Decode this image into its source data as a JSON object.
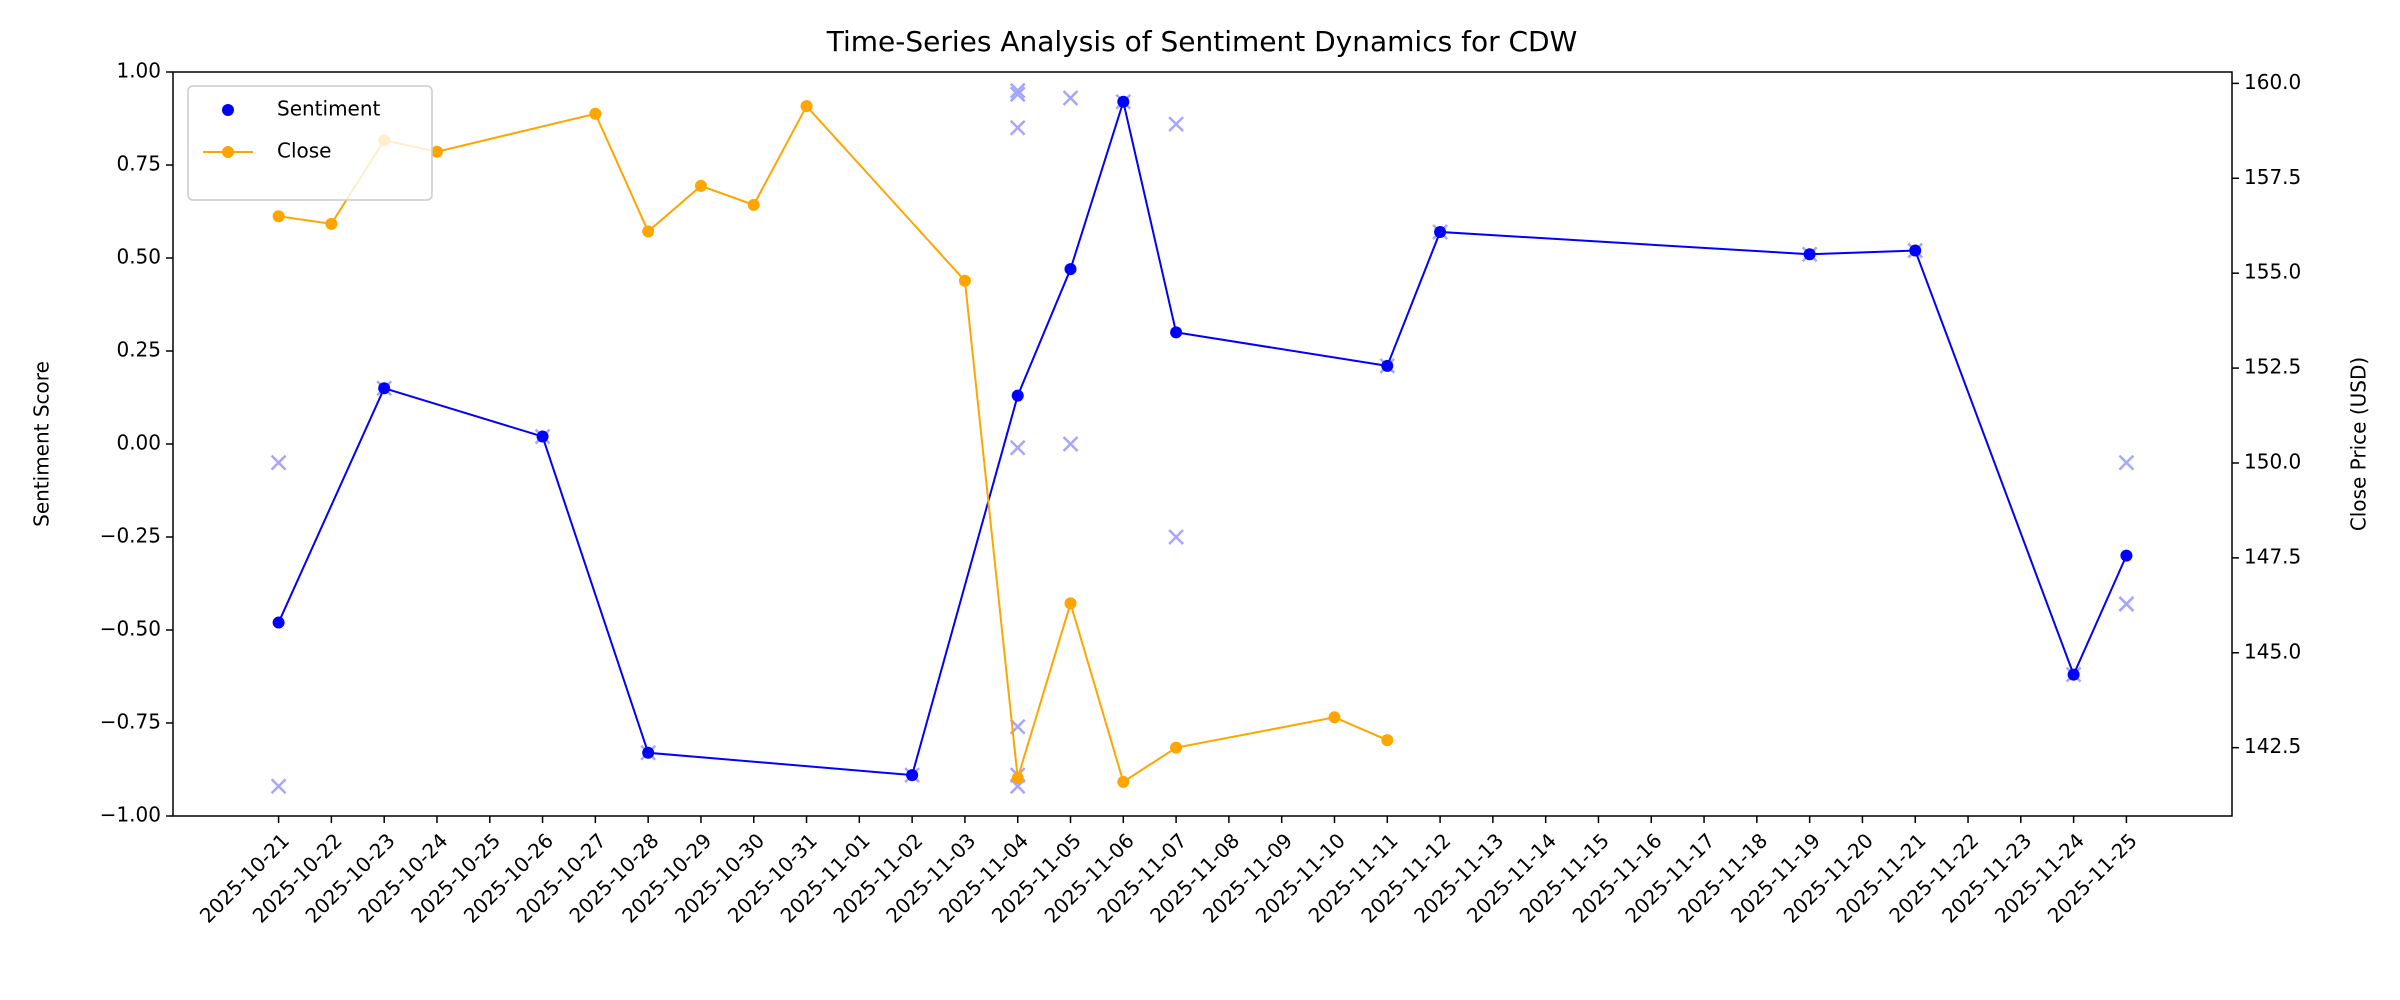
{
  "chart_data": {
    "type": "line",
    "title": "Time-Series Analysis of Sentiment Dynamics for CDW",
    "ylabel": "Sentiment Score",
    "y2label": "Close Price (USD)",
    "xlim": [
      "2025-10-19",
      "2025-11-27"
    ],
    "xticks": [
      "2025-10-21",
      "2025-10-22",
      "2025-10-23",
      "2025-10-24",
      "2025-10-25",
      "2025-10-26",
      "2025-10-27",
      "2025-10-28",
      "2025-10-29",
      "2025-10-30",
      "2025-10-31",
      "2025-11-01",
      "2025-11-02",
      "2025-11-03",
      "2025-11-04",
      "2025-11-05",
      "2025-11-06",
      "2025-11-07",
      "2025-11-08",
      "2025-11-09",
      "2025-11-10",
      "2025-11-11",
      "2025-11-12",
      "2025-11-13",
      "2025-11-14",
      "2025-11-15",
      "2025-11-16",
      "2025-11-17",
      "2025-11-18",
      "2025-11-19",
      "2025-11-20",
      "2025-11-21",
      "2025-11-22",
      "2025-11-23",
      "2025-11-24",
      "2025-11-25"
    ],
    "ylim": [
      -1,
      1
    ],
    "yticks": [
      {
        "value": -1,
        "label": "−1.00"
      },
      {
        "value": -0.75,
        "label": "−0.75"
      },
      {
        "value": -0.5,
        "label": "−0.50"
      },
      {
        "value": -0.25,
        "label": "−0.25"
      },
      {
        "value": 0,
        "label": "0.00"
      },
      {
        "value": 0.25,
        "label": "0.25"
      },
      {
        "value": 0.5,
        "label": "0.50"
      },
      {
        "value": 0.75,
        "label": "0.75"
      },
      {
        "value": 1,
        "label": "1.00"
      }
    ],
    "y2lim": [
      140.7,
      160.3
    ],
    "y2ticks": [
      142.5,
      {
        "value": 145,
        "label": "145.0"
      },
      147.5,
      {
        "value": 150,
        "label": "150.0"
      },
      152.5,
      {
        "value": 155,
        "label": "155.0"
      },
      157.5,
      {
        "value": 160,
        "label": "160.0"
      }
    ],
    "legend": "upper left",
    "series": [
      {
        "name": "Sentiment",
        "color": "#0000ff",
        "marker": "o",
        "line": true,
        "legend_line": false,
        "x": [
          "2025-10-21",
          "2025-10-23",
          "2025-10-26",
          "2025-10-28",
          "2025-11-02",
          "2025-11-04",
          "2025-11-05",
          "2025-11-06",
          "2025-11-07",
          "2025-11-11",
          "2025-11-12",
          "2025-11-19",
          "2025-11-21",
          "2025-11-24",
          "2025-11-25"
        ],
        "values": [
          -0.48,
          0.15,
          0.02,
          -0.83,
          -0.89,
          0.13,
          0.47,
          0.92,
          0.3,
          0.21,
          0.57,
          0.51,
          0.52,
          -0.62,
          -0.3
        ]
      },
      {
        "color": "#0000ff",
        "alpha": 0.35,
        "marker": "x",
        "line": false,
        "x": [
          "2025-10-21",
          "2025-10-21",
          "2025-10-23",
          "2025-10-26",
          "2025-10-28",
          "2025-11-02",
          "2025-11-04",
          "2025-11-04",
          "2025-11-04",
          "2025-11-04",
          "2025-11-04",
          "2025-11-04",
          "2025-11-04",
          "2025-11-05",
          "2025-11-05",
          "2025-11-06",
          "2025-11-07",
          "2025-11-07",
          "2025-11-11",
          "2025-11-12",
          "2025-11-19",
          "2025-11-21",
          "2025-11-24",
          "2025-11-25",
          "2025-11-25",
          "2025-11-25"
        ],
        "values": [
          -0.05,
          -0.92,
          0.15,
          0.02,
          -0.83,
          -0.89,
          0.95,
          0.94,
          0.85,
          -0.01,
          -0.76,
          -0.89,
          -0.92,
          0.93,
          0.0,
          0.92,
          0.86,
          -0.25,
          0.21,
          0.57,
          0.51,
          0.52,
          -0.62,
          -0.05,
          -0.43,
          -0.43
        ]
      },
      {
        "name": "Close",
        "color": "#ffa500",
        "marker": "o",
        "line": true,
        "legend_line": true,
        "axis": "y2",
        "x": [
          "2025-10-21",
          "2025-10-22",
          "2025-10-23",
          "2025-10-24",
          "2025-10-27",
          "2025-10-28",
          "2025-10-29",
          "2025-10-30",
          "2025-10-31",
          "2025-11-03",
          "2025-11-04",
          "2025-11-05",
          "2025-11-06",
          "2025-11-07",
          "2025-11-10",
          "2025-11-11"
        ],
        "values": [
          156.5,
          156.3,
          158.5,
          158.2,
          159.2,
          156.1,
          157.3,
          156.8,
          159.4,
          154.8,
          141.7,
          146.3,
          141.6,
          142.5,
          143.3,
          142.7
        ]
      }
    ]
  }
}
